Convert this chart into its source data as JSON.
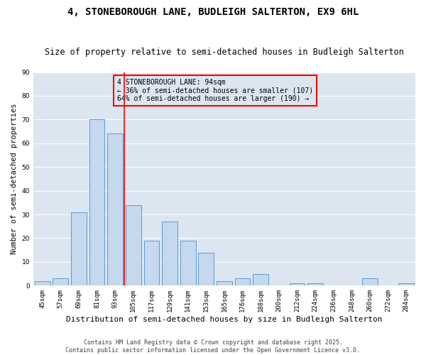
{
  "title": "4, STONEBOROUGH LANE, BUDLEIGH SALTERTON, EX9 6HL",
  "subtitle": "Size of property relative to semi-detached houses in Budleigh Salterton",
  "xlabel": "Distribution of semi-detached houses by size in Budleigh Salterton",
  "ylabel": "Number of semi-detached properties",
  "categories": [
    "45sqm",
    "57sqm",
    "69sqm",
    "81sqm",
    "93sqm",
    "105sqm",
    "117sqm",
    "129sqm",
    "141sqm",
    "153sqm",
    "165sqm",
    "176sqm",
    "188sqm",
    "200sqm",
    "212sqm",
    "224sqm",
    "236sqm",
    "248sqm",
    "260sqm",
    "272sqm",
    "284sqm"
  ],
  "values": [
    2,
    3,
    31,
    70,
    64,
    34,
    19,
    27,
    19,
    14,
    2,
    3,
    5,
    0,
    1,
    1,
    0,
    0,
    3,
    0,
    1
  ],
  "bar_color": "#c5d8ed",
  "bar_edge_color": "#5b9bd5",
  "plot_bg_color": "#dce6f1",
  "figure_bg_color": "#ffffff",
  "grid_color": "#ffffff",
  "annotation_text": "4 STONEBOROUGH LANE: 94sqm\n← 36% of semi-detached houses are smaller (107)\n64% of semi-detached houses are larger (190) →",
  "vline_x": 4.5,
  "vline_color": "#ff0000",
  "annotation_box_edge_color": "#ff0000",
  "footer_line1": "Contains HM Land Registry data © Crown copyright and database right 2025.",
  "footer_line2": "Contains public sector information licensed under the Open Government Licence v3.0.",
  "ylim": [
    0,
    90
  ],
  "title_fontsize": 10,
  "subtitle_fontsize": 8.5,
  "xlabel_fontsize": 8,
  "ylabel_fontsize": 7.5,
  "tick_fontsize": 6.5,
  "annotation_fontsize": 7,
  "footer_fontsize": 6
}
